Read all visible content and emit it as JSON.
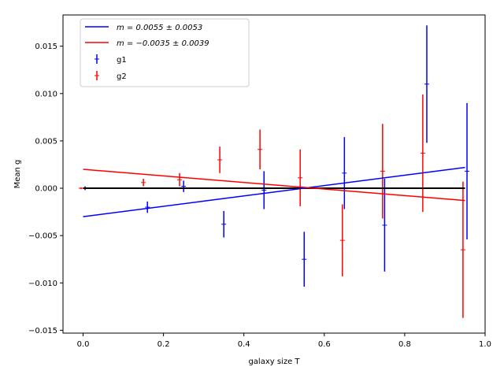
{
  "chart_data": {
    "type": "scatter",
    "title": "",
    "xlabel": "galaxy size T",
    "ylabel": "Mean g",
    "xlim": [
      -0.05,
      1.0
    ],
    "ylim": [
      -0.0153,
      0.0183
    ],
    "xticks": [
      0.0,
      0.2,
      0.4,
      0.6,
      0.8,
      1.0
    ],
    "xtick_labels": [
      "0.0",
      "0.2",
      "0.4",
      "0.6",
      "0.8",
      "1.0"
    ],
    "yticks": [
      -0.015,
      -0.01,
      -0.005,
      0.0,
      0.005,
      0.01,
      0.015
    ],
    "ytick_labels": [
      "−0.015",
      "−0.010",
      "−0.005",
      "0.000",
      "0.005",
      "0.010",
      "0.015"
    ],
    "legend_position": "top-left",
    "colors": {
      "g1": "#0000ff",
      "g2": "#ff0000",
      "reference": "#000000"
    },
    "fit_lines": [
      {
        "name": "g1-fit",
        "label": "m = 0.0055 ± 0.0053",
        "color": "#0000ff",
        "x": [
          0.0,
          0.95
        ],
        "y": [
          -0.003,
          0.0022
        ]
      },
      {
        "name": "g2-fit",
        "label": "m = −0.0035 ± 0.0039",
        "color": "#ff0000",
        "x": [
          0.0,
          0.95
        ],
        "y": [
          0.002,
          -0.0013
        ]
      }
    ],
    "reference_line": {
      "x": [
        0.0,
        0.95
      ],
      "y": [
        0.0,
        0.0
      ],
      "color": "#000000"
    },
    "series": [
      {
        "name": "g1",
        "label": "g1",
        "color": "#0000ff",
        "x": [
          0.005,
          0.16,
          0.25,
          0.35,
          0.45,
          0.55,
          0.65,
          0.75,
          0.855,
          0.955
        ],
        "y": [
          0.0,
          -0.002,
          0.0002,
          -0.0038,
          -0.0002,
          -0.0075,
          0.0016,
          -0.0039,
          0.011,
          0.0018
        ],
        "err": [
          0.0002,
          0.0006,
          0.0006,
          0.0014,
          0.002,
          0.0029,
          0.0038,
          0.0049,
          0.0062,
          0.0072
        ]
      },
      {
        "name": "g2",
        "label": "g2",
        "color": "#ff0000",
        "x": [
          -0.005,
          0.15,
          0.24,
          0.34,
          0.44,
          0.54,
          0.645,
          0.745,
          0.845,
          0.945
        ],
        "y": [
          0.0,
          0.0006,
          0.0009,
          0.003,
          0.0041,
          0.0011,
          -0.0055,
          0.0018,
          0.0037,
          -0.0065
        ],
        "err": [
          0.0001,
          0.0004,
          0.0007,
          0.0014,
          0.0021,
          0.003,
          0.0038,
          0.005,
          0.0062,
          0.0072
        ]
      }
    ]
  }
}
